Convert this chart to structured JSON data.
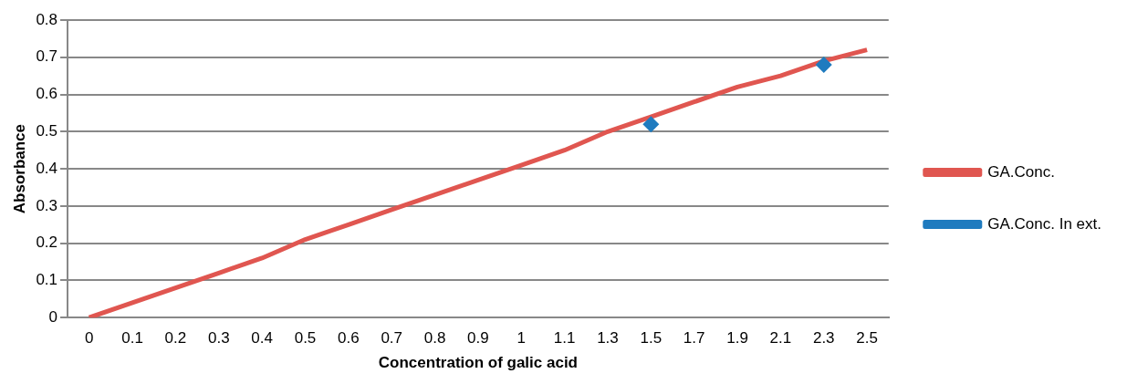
{
  "chart_data": {
    "type": "line",
    "xlabel": "Concentration of galic acid",
    "ylabel": "Absorbance",
    "categories": [
      "0",
      "0.1",
      "0.2",
      "0.3",
      "0.4",
      "0.5",
      "0.6",
      "0.7",
      "0.8",
      "0.9",
      "1",
      "1.1",
      "1.3",
      "1.5",
      "1.7",
      "1.9",
      "2.1",
      "2.3",
      "2.5"
    ],
    "series": [
      {
        "name": "GA.Conc.",
        "color": "#e05650",
        "marker": "none",
        "values": [
          0,
          0.04,
          0.08,
          0.12,
          0.16,
          0.21,
          0.25,
          0.29,
          0.33,
          0.37,
          0.41,
          0.45,
          0.5,
          0.54,
          0.58,
          0.62,
          0.65,
          0.69,
          0.72
        ]
      },
      {
        "name": "GA.Conc. In ext.",
        "type": "scatter",
        "color": "#1f7bbf",
        "marker": "diamond",
        "values": [
          null,
          null,
          null,
          null,
          null,
          null,
          null,
          null,
          null,
          null,
          null,
          null,
          null,
          0.52,
          null,
          null,
          null,
          0.68,
          null
        ]
      }
    ],
    "ylim": [
      0,
      0.8
    ],
    "yticks": [
      0,
      0.1,
      0.2,
      0.3,
      0.4,
      0.5,
      0.6,
      0.7,
      0.8
    ],
    "grid": "y",
    "legend": "right"
  }
}
